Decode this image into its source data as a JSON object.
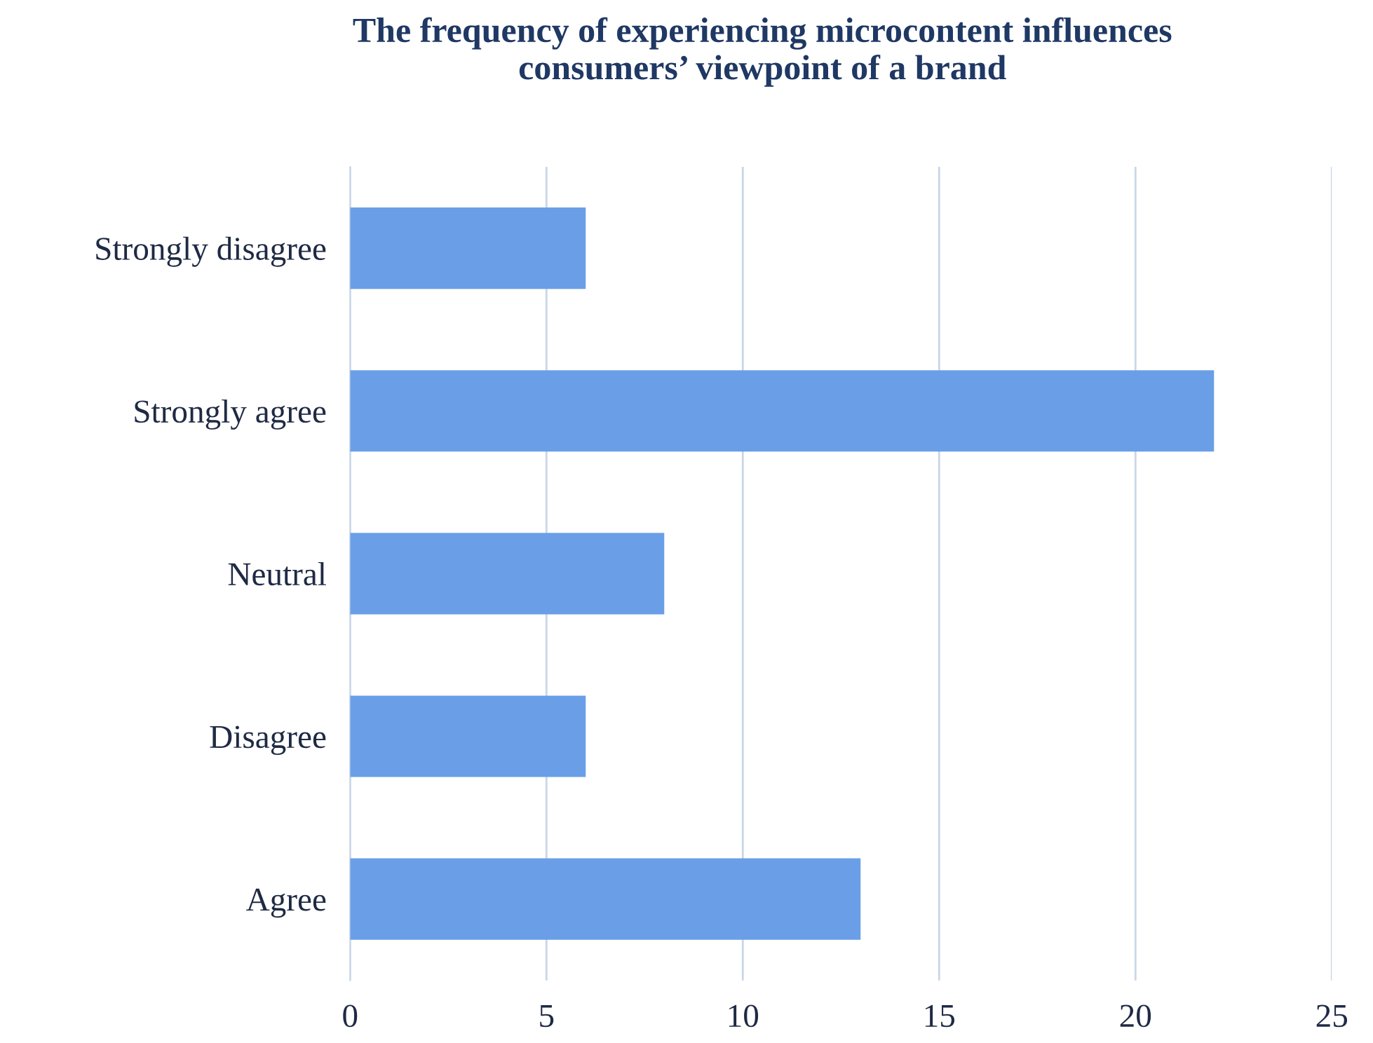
{
  "chart_data": {
    "type": "bar",
    "orientation": "horizontal",
    "title": "The frequency of experiencing microcontent influences\nconsumers’ viewpoint of a brand",
    "categories": [
      "Strongly disagree",
      "Strongly agree",
      "Neutral",
      "Disagree",
      "Agree"
    ],
    "values": [
      6,
      22,
      8,
      6,
      13
    ],
    "color": "#6a9fe8",
    "xlim": [
      0,
      25
    ],
    "xticks": [
      0,
      5,
      10,
      15,
      20,
      25
    ],
    "grid": "x",
    "legend": false
  }
}
